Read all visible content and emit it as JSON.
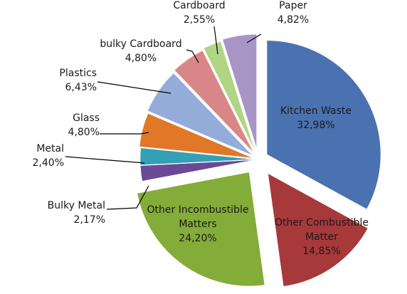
{
  "chart_data": {
    "type": "pie",
    "title": "",
    "legend": "none",
    "slices": [
      {
        "name": "Kitchen Waste",
        "display_value": "32,98%",
        "value": 32.98,
        "color": "#4a72b0"
      },
      {
        "name": "Other Combustible Matter",
        "display_value": "14,85%",
        "value": 14.85,
        "color": "#a7393a"
      },
      {
        "name": "Other Incombustible Matters",
        "display_value": "24,20%",
        "value": 24.2,
        "color": "#84ac38"
      },
      {
        "name": "Bulky Metal",
        "display_value": "2,17%",
        "value": 2.17,
        "color": "#6a4a97"
      },
      {
        "name": "Metal",
        "display_value": "2,40%",
        "value": 2.4,
        "color": "#33a0b5"
      },
      {
        "name": "Glass",
        "display_value": "4,80%",
        "value": 4.8,
        "color": "#e17828"
      },
      {
        "name": "Plastics",
        "display_value": "6,43%",
        "value": 6.43,
        "color": "#93acd9"
      },
      {
        "name": "bulky Cardboard",
        "display_value": "4,80%",
        "value": 4.8,
        "color": "#d98689"
      },
      {
        "name": "Cardboard",
        "display_value": "2,55%",
        "value": 2.55,
        "color": "#b0d585"
      },
      {
        "name": "Paper",
        "display_value": "4,82%",
        "value": 4.82,
        "color": "#a895c6"
      }
    ]
  }
}
